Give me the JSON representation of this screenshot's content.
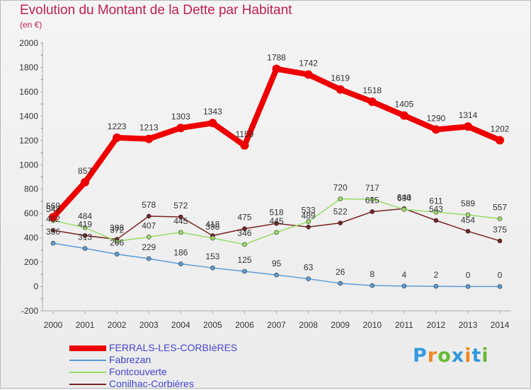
{
  "title": "Evolution du Montant de la Dette par Habitant",
  "unit": "(en €)",
  "logo": {
    "text": "Proxiti",
    "colors": [
      "#3399dd",
      "#ee8822",
      "#66bb33",
      "#3399dd",
      "#ee8822",
      "#3399dd",
      "#66bb33"
    ]
  },
  "chart_data": {
    "type": "line",
    "x": [
      "2000",
      "2001",
      "2002",
      "2003",
      "2004",
      "2005",
      "2006",
      "2007",
      "2008",
      "2009",
      "2010",
      "2011",
      "2012",
      "2013",
      "2014"
    ],
    "ylim": [
      -200,
      2000
    ],
    "yticks": [
      -200,
      0,
      200,
      400,
      600,
      800,
      1000,
      1200,
      1400,
      1600,
      1800,
      2000
    ],
    "grid": false,
    "legend_placement": "bottom-left",
    "series": [
      {
        "name": "FERRALS-LES-CORBIèRES",
        "color": "#ee0000",
        "width": 8,
        "marker": 6,
        "values": [
          569,
          857,
          1223,
          1213,
          1303,
          1343,
          1159,
          1788,
          1742,
          1619,
          1518,
          1405,
          1290,
          1314,
          1202
        ]
      },
      {
        "name": "Fabrezan",
        "color": "#5b9bd5",
        "width": 1.5,
        "marker": 3,
        "values": [
          356,
          313,
          266,
          229,
          186,
          153,
          125,
          95,
          63,
          26,
          8,
          4,
          2,
          0,
          0
        ]
      },
      {
        "name": "Fontcouverte",
        "color": "#99dd66",
        "width": 1.5,
        "marker": 3,
        "values": [
          542,
          484,
          372,
          407,
          445,
          398,
          346,
          445,
          533,
          720,
          717,
          634,
          611,
          589,
          557
        ]
      },
      {
        "name": "Conilhac-Corbières",
        "color": "#772222",
        "width": 1.5,
        "marker": 3,
        "values": [
          462,
          419,
          388,
          578,
          572,
          418,
          475,
          518,
          489,
          522,
          615,
          640,
          543,
          454,
          375
        ]
      }
    ]
  }
}
